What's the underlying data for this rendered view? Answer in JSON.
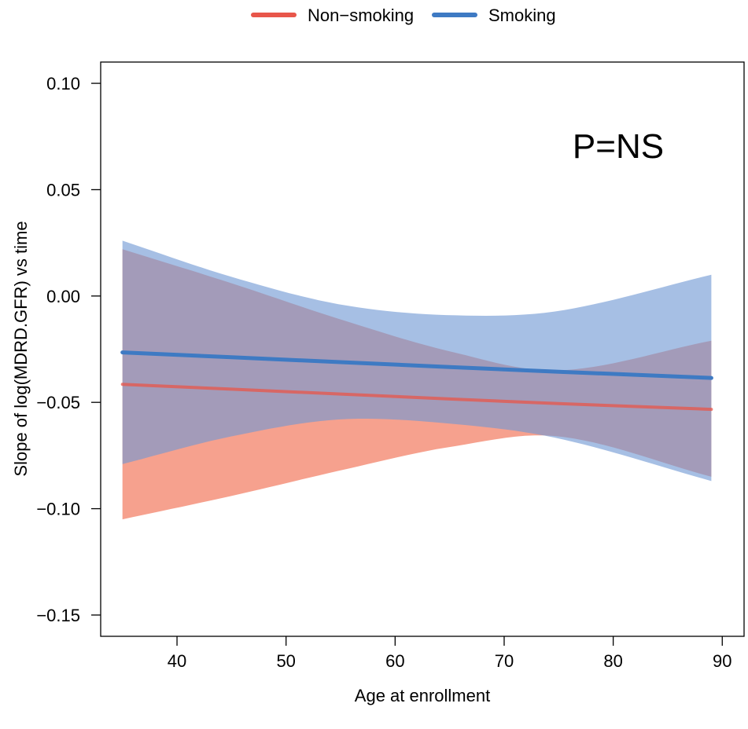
{
  "chart_data": {
    "type": "line",
    "title": "",
    "xlabel": "Age at enrollment",
    "ylabel": "Slope of log(MDRD.GFR) vs time",
    "xlim": [
      33,
      92
    ],
    "ylim": [
      -0.16,
      0.11
    ],
    "x_ticks": [
      "40",
      "50",
      "60",
      "70",
      "80",
      "90"
    ],
    "y_ticks": [
      "0.10",
      "0.05",
      "0.00",
      "−0.05",
      "−0.10",
      "−0.15"
    ],
    "x_tick_values": [
      40,
      50,
      60,
      70,
      80,
      90
    ],
    "y_tick_values": [
      0.1,
      0.05,
      0.0,
      -0.05,
      -0.1,
      -0.15
    ],
    "grid": false,
    "legend_position": "top-center",
    "annotation": "P=NS",
    "series": [
      {
        "name": "Non−smoking",
        "color": "#e8564a",
        "band_color": "#f4907a",
        "x": [
          35,
          45,
          55,
          65,
          75,
          89
        ],
        "y": [
          -0.0415,
          -0.0438,
          -0.0461,
          -0.0484,
          -0.0506,
          -0.0533
        ],
        "lower": [
          -0.105,
          -0.094,
          -0.082,
          -0.071,
          -0.066,
          -0.085
        ],
        "upper": [
          0.022,
          0.006,
          -0.011,
          -0.026,
          -0.035,
          -0.021
        ]
      },
      {
        "name": "Smoking",
        "color": "#3e7ac3",
        "band_color": "#6f98d3",
        "x": [
          35,
          45,
          55,
          65,
          75,
          89
        ],
        "y": [
          -0.0265,
          -0.0288,
          -0.0311,
          -0.0334,
          -0.0356,
          -0.0385
        ],
        "lower": [
          -0.079,
          -0.066,
          -0.058,
          -0.06,
          -0.067,
          -0.087
        ],
        "upper": [
          0.026,
          0.009,
          -0.004,
          -0.009,
          -0.007,
          0.01
        ]
      }
    ]
  }
}
